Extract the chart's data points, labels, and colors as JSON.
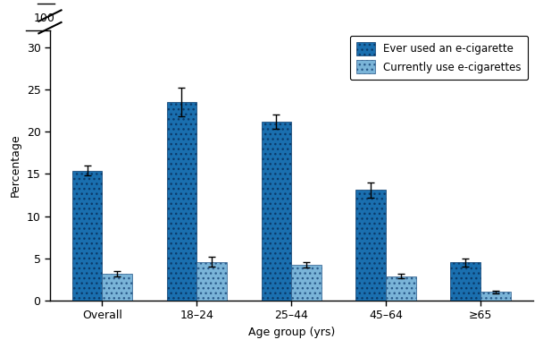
{
  "categories": [
    "Overall",
    "18–24",
    "25–44",
    "45–64",
    "≥65"
  ],
  "ever_used": [
    15.4,
    23.5,
    21.2,
    13.1,
    4.5
  ],
  "currently_use": [
    3.2,
    4.6,
    4.2,
    2.9,
    1.0
  ],
  "ever_used_errors": [
    0.6,
    1.7,
    0.9,
    0.9,
    0.5
  ],
  "currently_use_errors": [
    0.3,
    0.6,
    0.3,
    0.3,
    0.2
  ],
  "ever_color": "#1a6faf",
  "current_color": "#7ab4d8",
  "bar_width": 0.32,
  "ylim": [
    0,
    32
  ],
  "ylabel": "Percentage",
  "xlabel": "Age group (yrs)",
  "legend_ever": "Ever used an e-cigarette",
  "legend_current": "Currently use e-cigarettes",
  "yticks": [
    0,
    5,
    10,
    15,
    20,
    25,
    30
  ],
  "ytick_labels": [
    "0",
    "5",
    "10",
    "15",
    "20",
    "25",
    "30"
  ],
  "background_color": "#ffffff"
}
